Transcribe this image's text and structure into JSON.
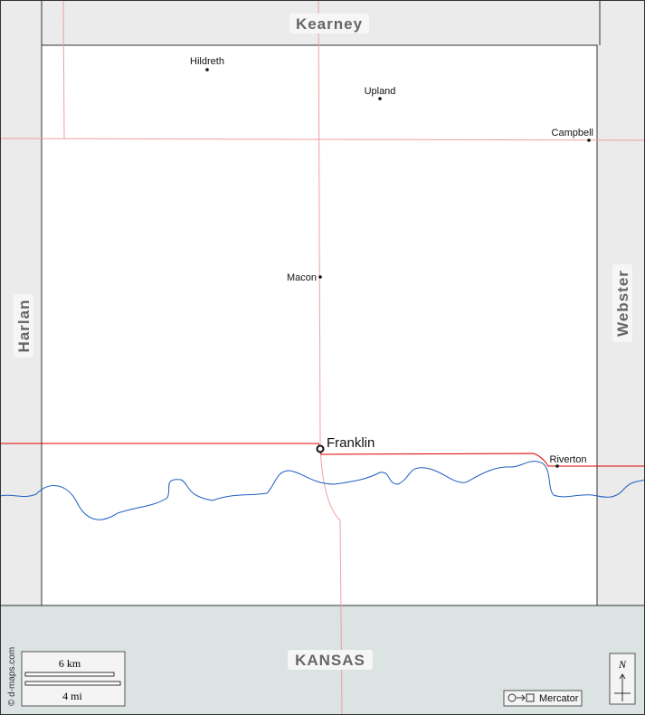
{
  "neighbors": {
    "north": "Kearney",
    "west": "Harlan",
    "east": "Webster",
    "south": "KANSAS"
  },
  "places": [
    {
      "name": "Hildreth"
    },
    {
      "name": "Upland"
    },
    {
      "name": "Campbell"
    },
    {
      "name": "Macon"
    },
    {
      "name": "Franklin"
    },
    {
      "name": "Riverton"
    }
  ],
  "scale": {
    "km": "6 km",
    "mi": "4 mi"
  },
  "credit": "© d-maps.com",
  "projection": "Mercator",
  "north_arrow": "N"
}
